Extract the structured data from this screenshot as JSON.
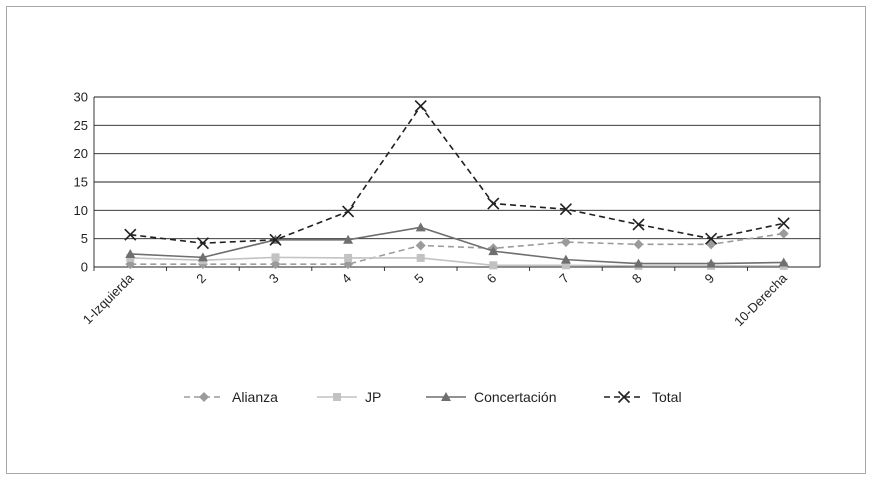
{
  "chart_data": {
    "type": "line",
    "categories": [
      "1-Izquierda",
      "2",
      "3",
      "4",
      "5",
      "6",
      "7",
      "8",
      "9",
      "10-Derecha"
    ],
    "ylim": [
      0,
      30
    ],
    "yticks": [
      0,
      5,
      10,
      15,
      20,
      25,
      30
    ],
    "grid": true,
    "legend_position": "bottom",
    "series": [
      {
        "name": "Alianza",
        "values": [
          0.5,
          0.5,
          0.5,
          0.5,
          3.8,
          3.3,
          4.4,
          4.0,
          4.0,
          5.9
        ],
        "color": "#9b9b9b",
        "dash": "dashed",
        "marker": "diamond"
      },
      {
        "name": "JP",
        "values": [
          1.6,
          1.2,
          1.7,
          1.6,
          1.6,
          0.3,
          0.3,
          0.2,
          0.2,
          0.2
        ],
        "color": "#c2c2c2",
        "dash": "solid",
        "marker": "square"
      },
      {
        "name": "Concertación",
        "values": [
          2.3,
          1.7,
          4.8,
          4.8,
          7.0,
          2.8,
          1.3,
          0.6,
          0.6,
          0.8
        ],
        "color": "#6f6f6f",
        "dash": "solid",
        "marker": "triangle"
      },
      {
        "name": "Total",
        "values": [
          5.7,
          4.2,
          4.8,
          9.8,
          28.4,
          11.2,
          10.2,
          7.5,
          5.0,
          7.7
        ],
        "color": "#231f20",
        "dash": "dashed",
        "marker": "x"
      }
    ]
  }
}
